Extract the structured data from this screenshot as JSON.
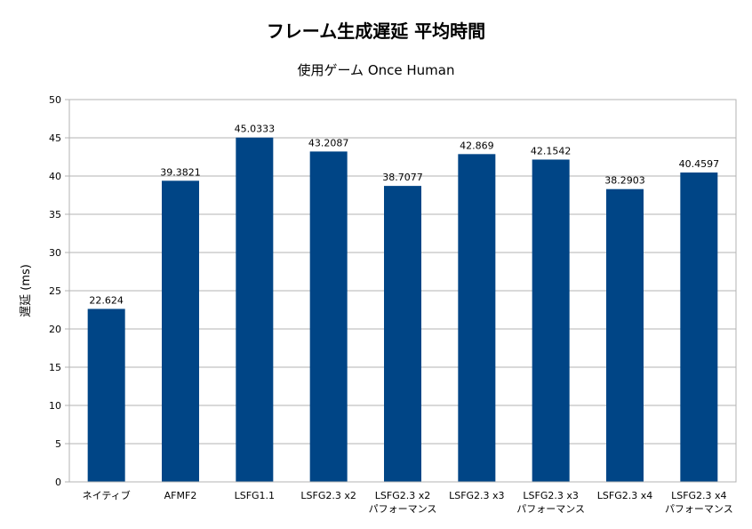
{
  "chart_data": {
    "type": "bar",
    "title": "フレーム生成遅延 平均時間",
    "subtitle": "使用ゲーム  Once Human",
    "xlabel": "",
    "ylabel": "遅延 (ms)",
    "ylim": [
      0,
      50
    ],
    "yticks": [
      "0",
      "5",
      "10",
      "15",
      "20",
      "25",
      "30",
      "35",
      "40",
      "45",
      "50"
    ],
    "grid": true,
    "legend": "none",
    "bar_color": "#004586",
    "categories": [
      [
        "ネイティブ"
      ],
      [
        "AFMF2"
      ],
      [
        "LSFG1.1"
      ],
      [
        "LSFG2.3 x2"
      ],
      [
        "LSFG2.3 x2",
        "パフォーマンス"
      ],
      [
        "LSFG2.3 x3"
      ],
      [
        "LSFG2.3 x3",
        "パフォーマンス"
      ],
      [
        "LSFG2.3 x4"
      ],
      [
        "LSFG2.3 x4",
        "パフォーマンス"
      ]
    ],
    "values": [
      22.624,
      39.3821,
      45.0333,
      43.2087,
      38.7077,
      42.869,
      42.1542,
      38.2903,
      40.4597
    ],
    "labels": [
      "22.624",
      "39.3821",
      "45.0333",
      "43.2087",
      "38.7077",
      "42.869",
      "42.1542",
      "38.2903",
      "40.4597"
    ]
  }
}
